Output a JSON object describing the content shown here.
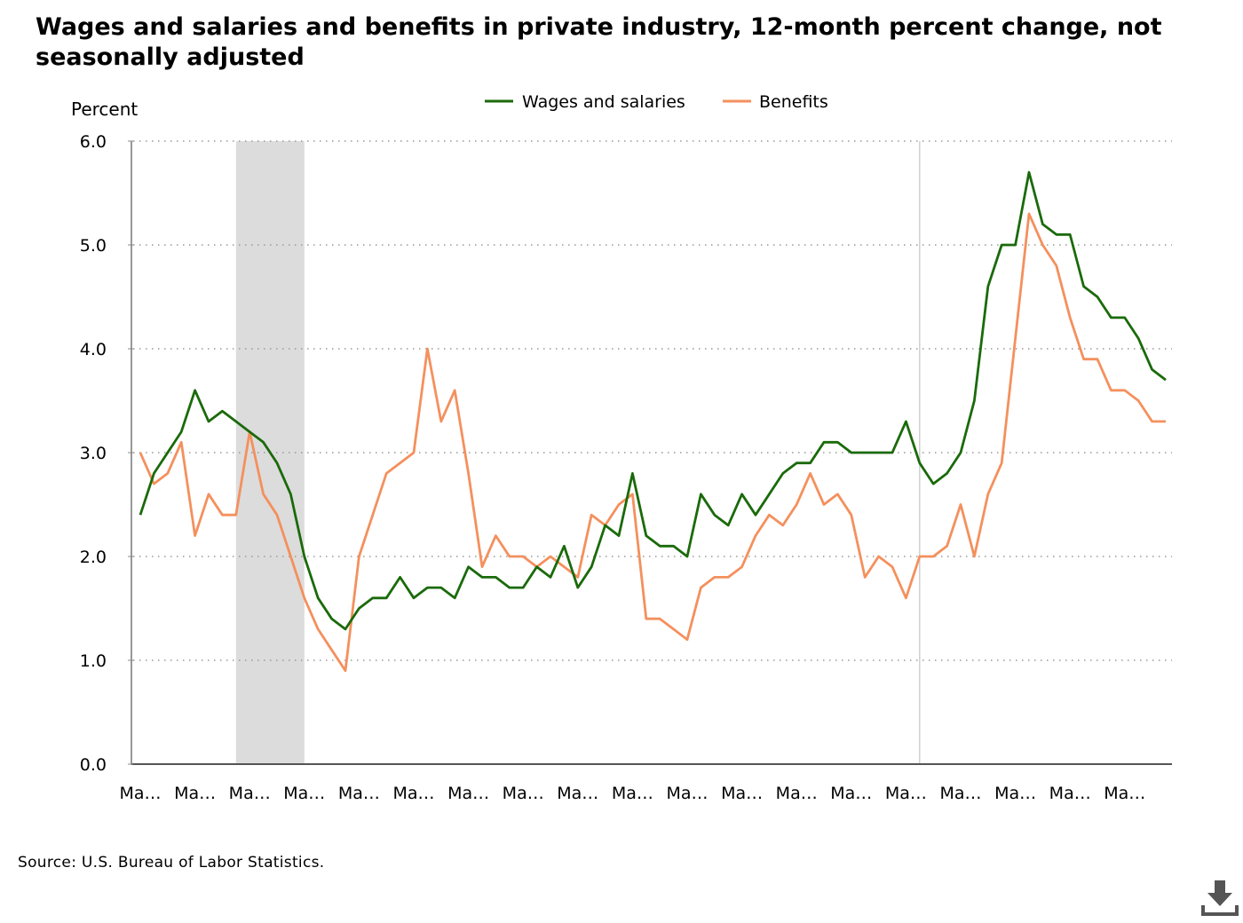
{
  "chart_data": {
    "type": "line",
    "title": "Wages and salaries and benefits in private industry, 12-month percent change, not seasonally adjusted",
    "ylabel": "Percent",
    "ylim": [
      0,
      6
    ],
    "yticks": [
      "0.0",
      "1.0",
      "2.0",
      "3.0",
      "4.0",
      "5.0",
      "6.0"
    ],
    "xtick_labels": [
      "Ma…",
      "Ma…",
      "Ma…",
      "Ma…",
      "Ma…",
      "Ma…",
      "Ma…",
      "Ma…",
      "Ma…",
      "Ma…",
      "Ma…",
      "Ma…",
      "Ma…",
      "Ma…",
      "Ma…",
      "Ma…",
      "Ma…",
      "Ma…",
      "Ma…"
    ],
    "grid": "horizontal dotted",
    "legend_position": "top-center",
    "shaded_region_quarters": [
      7,
      12
    ],
    "reference_line_quarter": 57,
    "series": [
      {
        "name": "Wages and salaries",
        "color": "#1a6a0a",
        "values": [
          2.4,
          2.8,
          3.0,
          3.2,
          3.6,
          3.3,
          3.4,
          3.3,
          3.2,
          3.1,
          2.9,
          2.6,
          2.0,
          1.6,
          1.4,
          1.3,
          1.5,
          1.6,
          1.6,
          1.8,
          1.6,
          1.7,
          1.7,
          1.6,
          1.9,
          1.8,
          1.8,
          1.7,
          1.7,
          1.9,
          1.8,
          2.1,
          1.7,
          1.9,
          2.3,
          2.2,
          2.8,
          2.2,
          2.1,
          2.1,
          2.0,
          2.6,
          2.4,
          2.3,
          2.6,
          2.4,
          2.6,
          2.8,
          2.9,
          2.9,
          3.1,
          3.1,
          3.0,
          3.0,
          3.0,
          3.0,
          3.3,
          2.9,
          2.7,
          2.8,
          3.0,
          3.5,
          4.6,
          5.0,
          5.0,
          5.7,
          5.2,
          5.1,
          5.1,
          4.6,
          4.5,
          4.3,
          4.3,
          4.1,
          3.8,
          3.7
        ]
      },
      {
        "name": "Benefits",
        "color": "#f4905d",
        "values": [
          3.0,
          2.7,
          2.8,
          3.1,
          2.2,
          2.6,
          2.4,
          2.4,
          3.2,
          2.6,
          2.4,
          2.0,
          1.6,
          1.3,
          1.1,
          0.9,
          2.0,
          2.4,
          2.8,
          2.9,
          3.0,
          4.0,
          3.3,
          3.6,
          2.8,
          1.9,
          2.2,
          2.0,
          2.0,
          1.9,
          2.0,
          1.9,
          1.8,
          2.4,
          2.3,
          2.5,
          2.6,
          1.4,
          1.4,
          1.3,
          1.2,
          1.7,
          1.8,
          1.8,
          1.9,
          2.2,
          2.4,
          2.3,
          2.5,
          2.8,
          2.5,
          2.6,
          2.4,
          1.8,
          2.0,
          1.9,
          1.6,
          2.0,
          2.0,
          2.1,
          2.5,
          2.0,
          2.6,
          2.9,
          4.1,
          5.3,
          5.0,
          4.8,
          4.3,
          3.9,
          3.9,
          3.6,
          3.6,
          3.5,
          3.3,
          3.3
        ]
      }
    ]
  },
  "source_text": "Source: U.S. Bureau of Labor Statistics.",
  "download_icon": "download-icon"
}
